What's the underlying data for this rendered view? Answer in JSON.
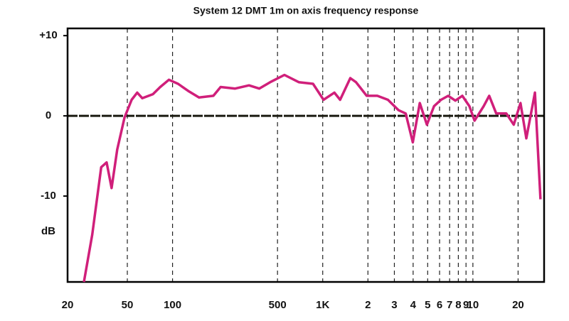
{
  "chart_data": {
    "type": "line",
    "title": "System   12 DMT    1m  on  axis  frequency  response",
    "y_label": "dB",
    "log_x": true,
    "grid": true,
    "xlim": [
      20,
      29800
    ],
    "ylim": [
      -20.7,
      10.9
    ],
    "xticks": [
      20,
      50,
      100,
      500,
      {
        "value": 1000,
        "label": "1K"
      },
      {
        "value": 2000,
        "label": "2"
      },
      {
        "value": 3000,
        "label": "3"
      },
      {
        "value": 4000,
        "label": "4"
      },
      {
        "value": 5000,
        "label": "5"
      },
      {
        "value": 6000,
        "label": "6"
      },
      {
        "value": 7000,
        "label": "7"
      },
      {
        "value": 8000,
        "label": "8"
      },
      {
        "value": 9000,
        "label": "9"
      },
      {
        "value": 10000,
        "label": "10"
      },
      {
        "value": 20000,
        "label": "20"
      }
    ],
    "yticks": [
      {
        "value": 10,
        "label": "+10"
      },
      0,
      -10
    ],
    "x": [
      25.7,
      29.2,
      33.5,
      36.4,
      39.3,
      42.8,
      47.9,
      53.4,
      58.2,
      62.9,
      74,
      82.8,
      94.6,
      108.8,
      127.3,
      150.1,
      187,
      209,
      261,
      323,
      378,
      447,
      556,
      693,
      862,
      1013,
      1195,
      1306,
      1526,
      1666,
      1963,
      2310,
      2717,
      3200,
      3570,
      3980,
      4430,
      4940,
      5510,
      6140,
      6850,
      7640,
      8500,
      9480,
      10260,
      11800,
      12840,
      14300,
      16700,
      18700,
      20750,
      22700,
      25900,
      28200
    ],
    "series": [
      {
        "color": "#d01f7a",
        "values": [
          -20.7,
          -14.8,
          -6.4,
          -5.8,
          -9,
          -4.2,
          -0.2,
          2.0,
          2.9,
          2.2,
          2.7,
          3.6,
          4.5,
          4.0,
          3.1,
          2.3,
          2.5,
          3.6,
          3.4,
          3.8,
          3.4,
          4.2,
          5.1,
          4.2,
          4.0,
          2.0,
          2.9,
          2.0,
          4.7,
          4.2,
          2.5,
          2.5,
          2.0,
          0.7,
          0.3,
          -3.3,
          1.6,
          -1.1,
          1.2,
          2.0,
          2.5,
          1.9,
          2.5,
          1.2,
          -0.6,
          1.2,
          2.5,
          0.3,
          0.3,
          -1.1,
          1.6,
          -2.8,
          2.9,
          -10.4
        ]
      }
    ]
  }
}
